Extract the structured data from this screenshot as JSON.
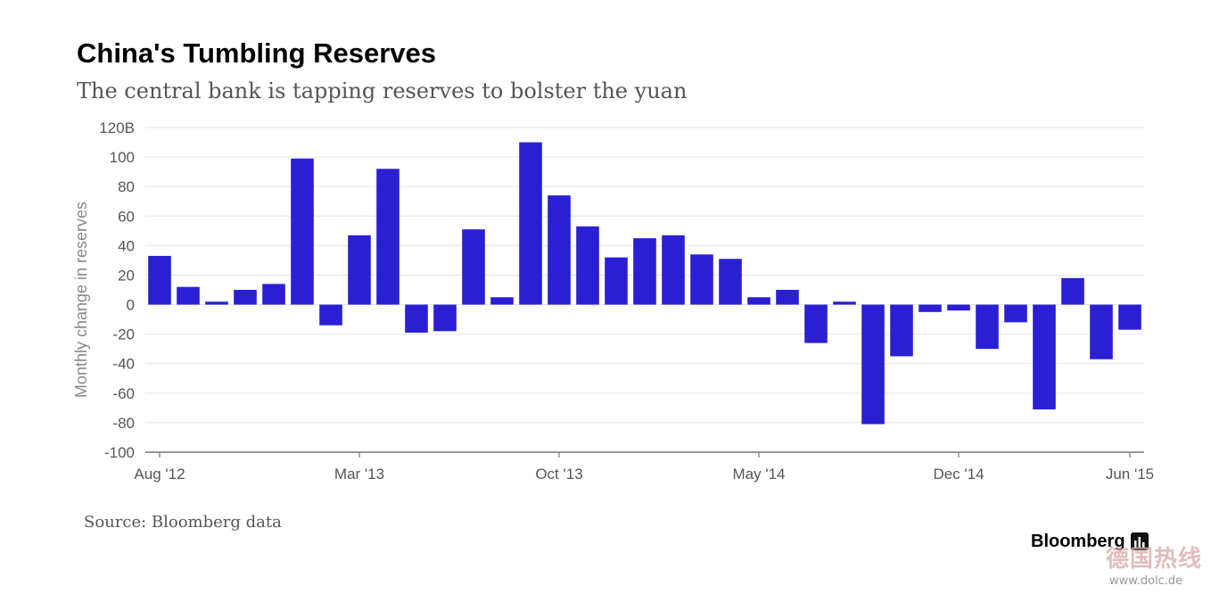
{
  "chart_data": {
    "type": "bar",
    "title": "China's Tumbling Reserves",
    "subtitle": "The central bank is tapping reserves to bolster the yuan",
    "xlabel": "",
    "ylabel": "Monthly change in reserves",
    "ylim": [
      -100,
      120
    ],
    "yticks": [
      "120B",
      "100",
      "80",
      "60",
      "40",
      "20",
      "0",
      "-20",
      "-40",
      "-60",
      "-80",
      "-100"
    ],
    "grid": true,
    "bar_color": "#2a1fd3",
    "x_tick_labels": [
      {
        "label": "Aug '12",
        "index": 0
      },
      {
        "label": "Mar '13",
        "index": 7
      },
      {
        "label": "Oct '13",
        "index": 14
      },
      {
        "label": "May '14",
        "index": 21
      },
      {
        "label": "Dec '14",
        "index": 28
      },
      {
        "label": "Jun '15",
        "index": 34
      }
    ],
    "categories": [
      "Aug '12",
      "Sep '12",
      "Oct '12",
      "Nov '12",
      "Dec '12",
      "Jan '13",
      "Feb '13",
      "Mar '13",
      "Apr '13",
      "May '13",
      "Jun '13",
      "Jul '13",
      "Aug '13",
      "Sep '13",
      "Oct '13",
      "Nov '13",
      "Dec '13",
      "Jan '14",
      "Feb '14",
      "Mar '14",
      "Apr '14",
      "May '14",
      "Jun '14",
      "Jul '14",
      "Aug '14",
      "Sep '14",
      "Oct '14",
      "Nov '14",
      "Dec '14",
      "Jan '15",
      "Feb '15",
      "Mar '15",
      "Apr '15",
      "May '15",
      "Jun '15"
    ],
    "values": [
      33,
      12,
      2,
      10,
      14,
      99,
      -14,
      47,
      92,
      -19,
      -18,
      51,
      5,
      110,
      74,
      53,
      32,
      45,
      47,
      34,
      31,
      5,
      10,
      -26,
      2,
      -81,
      -35,
      -5,
      -4,
      -30,
      -12,
      -71,
      18,
      -37,
      -17
    ]
  },
  "footer": {
    "source": "Source: Bloomberg data",
    "brand": "Bloomberg"
  },
  "watermark": {
    "text": "德国热线",
    "url": "www.dolc.de"
  }
}
